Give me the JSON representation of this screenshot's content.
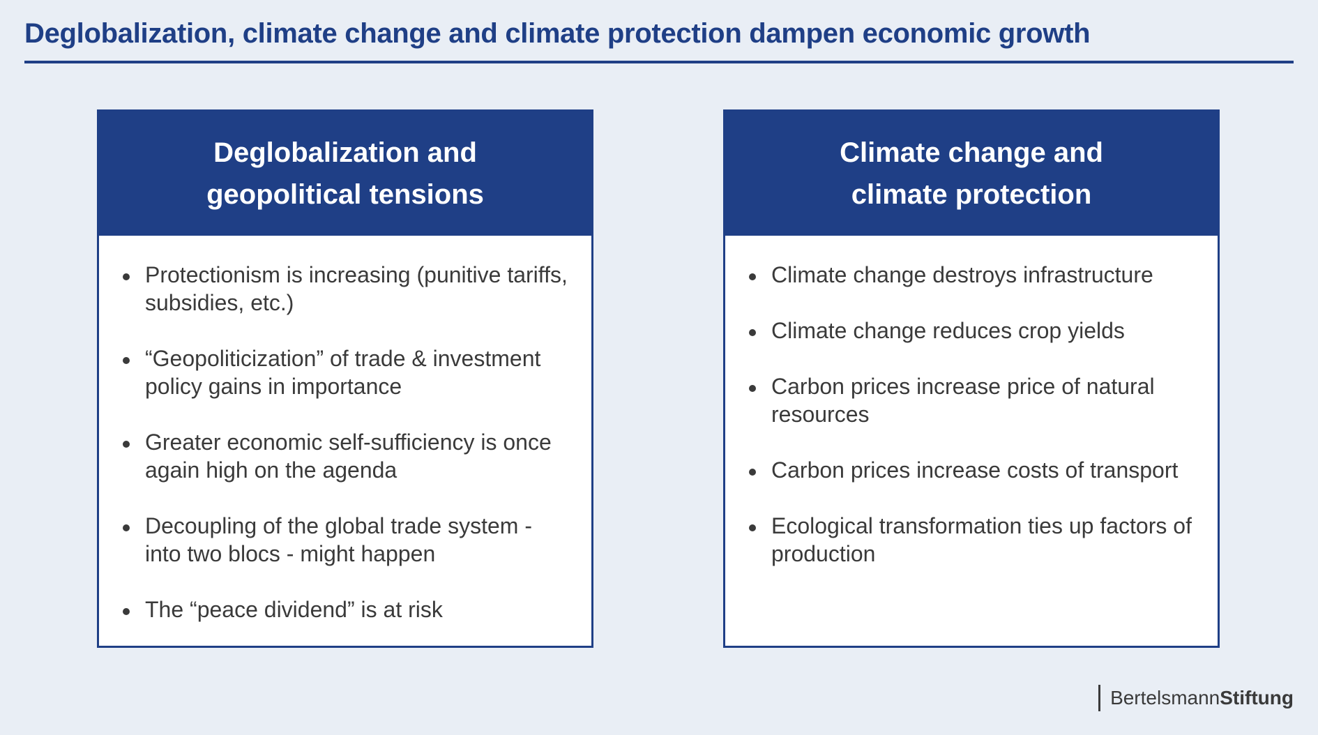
{
  "title": "Deglobalization, climate change and climate protection dampen economic growth",
  "panels": [
    {
      "header_lines": [
        "Deglobalization and",
        "geopolitical tensions"
      ],
      "items": [
        "Protectionism is increasing (punitive tariffs, subsidies, etc.)",
        "“Geopoliticization” of trade & investment policy gains in importance",
        "Greater economic self-sufficiency is once again high on the agenda",
        "Decoupling of the global trade system - into two blocs - might happen",
        "The “peace dividend” is at risk"
      ]
    },
    {
      "header_lines": [
        "Climate change and",
        "climate protection"
      ],
      "items": [
        "Climate change destroys infrastructure",
        "Climate change reduces crop yields",
        "Carbon prices increase price of natural resources",
        "Carbon prices increase costs of transport",
        "Ecological transformation ties up factors of production"
      ]
    }
  ],
  "logo": {
    "part1": "Bertelsmann",
    "part2": "Stiftung"
  },
  "colors": {
    "accent": "#1f3f86",
    "background": "#e9eef5",
    "text": "#3a3a3a"
  }
}
